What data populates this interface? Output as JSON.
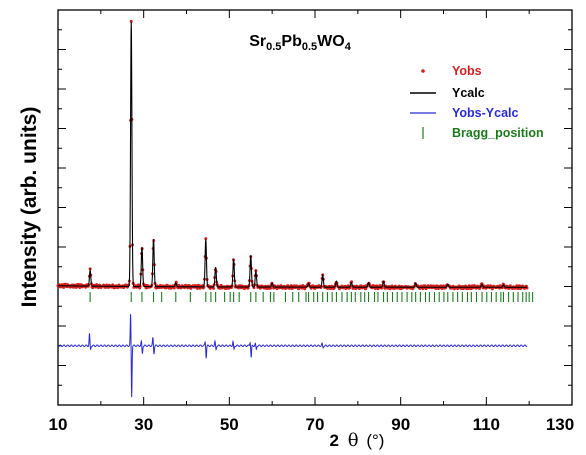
{
  "chart_data": {
    "type": "line",
    "title_parts": {
      "t0": "Sr",
      "s1": "0.5",
      "t2": "Pb",
      "s3": "0.5",
      "t4": "WO",
      "s5": "4"
    },
    "xlabel_main": "2",
    "xlabel_theta": "θ",
    "xlabel_unit": "(°)",
    "ylabel": "Intensity (arb. units)",
    "xlim": [
      10,
      130
    ],
    "x_ticks": [
      "10",
      "30",
      "50",
      "70",
      "90",
      "110",
      "130"
    ],
    "ylim": [
      0,
      1
    ],
    "colors": {
      "yobs": "#d42020",
      "ycalc": "#000000",
      "diff": "#2b2bd4",
      "bragg": "#1e7a1e"
    },
    "legend": {
      "position": "top-right",
      "yobs": "Yobs",
      "ycalc": "Ycalc",
      "diff": "Yobs-Ycalc",
      "bragg": "Bragg_position"
    },
    "x_range": [
      10,
      119.5
    ],
    "baseline": 0.298,
    "diff_baseline": 0.15,
    "peaks": [
      {
        "x": 17.5,
        "h": 0.04
      },
      {
        "x": 27.1,
        "h": 0.67
      },
      {
        "x": 29.6,
        "h": 0.1
      },
      {
        "x": 32.3,
        "h": 0.12
      },
      {
        "x": 37.5,
        "h": 0.01
      },
      {
        "x": 44.5,
        "h": 0.12
      },
      {
        "x": 46.8,
        "h": 0.05
      },
      {
        "x": 51.0,
        "h": 0.07
      },
      {
        "x": 55.0,
        "h": 0.08
      },
      {
        "x": 56.2,
        "h": 0.04
      },
      {
        "x": 60.0,
        "h": 0.01
      },
      {
        "x": 68.5,
        "h": 0.01
      },
      {
        "x": 71.8,
        "h": 0.03
      },
      {
        "x": 75.0,
        "h": 0.015
      },
      {
        "x": 78.5,
        "h": 0.012
      },
      {
        "x": 82.5,
        "h": 0.012
      },
      {
        "x": 86.0,
        "h": 0.015
      },
      {
        "x": 93.5,
        "h": 0.01
      },
      {
        "x": 101.0,
        "h": 0.008
      },
      {
        "x": 109.0,
        "h": 0.008
      },
      {
        "x": 114.0,
        "h": 0.006
      }
    ],
    "diff_spikes": [
      {
        "x": 17.5,
        "up": 0.03,
        "down": -0.01
      },
      {
        "x": 27.1,
        "up": 0.08,
        "down": -0.13
      },
      {
        "x": 29.6,
        "up": 0.01,
        "down": -0.02
      },
      {
        "x": 32.3,
        "up": 0.02,
        "down": -0.02
      },
      {
        "x": 44.5,
        "up": 0.01,
        "down": -0.03
      },
      {
        "x": 46.8,
        "up": 0.01,
        "down": -0.01
      },
      {
        "x": 51.0,
        "up": 0.01,
        "down": -0.01
      },
      {
        "x": 55.0,
        "up": 0.01,
        "down": -0.03
      },
      {
        "x": 56.2,
        "up": 0.005,
        "down": -0.01
      },
      {
        "x": 71.8,
        "up": 0.005,
        "down": -0.005
      }
    ],
    "bragg_positions": [
      17.5,
      27.1,
      29.6,
      32.3,
      34.2,
      37.5,
      40.9,
      44.5,
      45.7,
      46.8,
      48.9,
      50.2,
      51.0,
      52.3,
      55.0,
      56.2,
      57.9,
      59.6,
      60.4,
      63.1,
      64.8,
      66.2,
      67.9,
      68.5,
      69.7,
      70.6,
      71.8,
      72.9,
      74.0,
      75.0,
      76.3,
      77.5,
      78.5,
      79.4,
      80.7,
      81.6,
      82.5,
      83.9,
      84.7,
      86.0,
      86.9,
      88.1,
      89.2,
      90.3,
      91.5,
      92.6,
      93.5,
      94.6,
      95.8,
      96.7,
      97.9,
      99.0,
      100.1,
      101.0,
      102.2,
      103.3,
      104.4,
      105.6,
      106.5,
      107.7,
      109.0,
      110.1,
      111.2,
      112.3,
      113.4,
      114.0,
      115.2,
      116.3,
      117.4,
      118.5,
      119.3,
      120.0,
      120.8
    ]
  }
}
